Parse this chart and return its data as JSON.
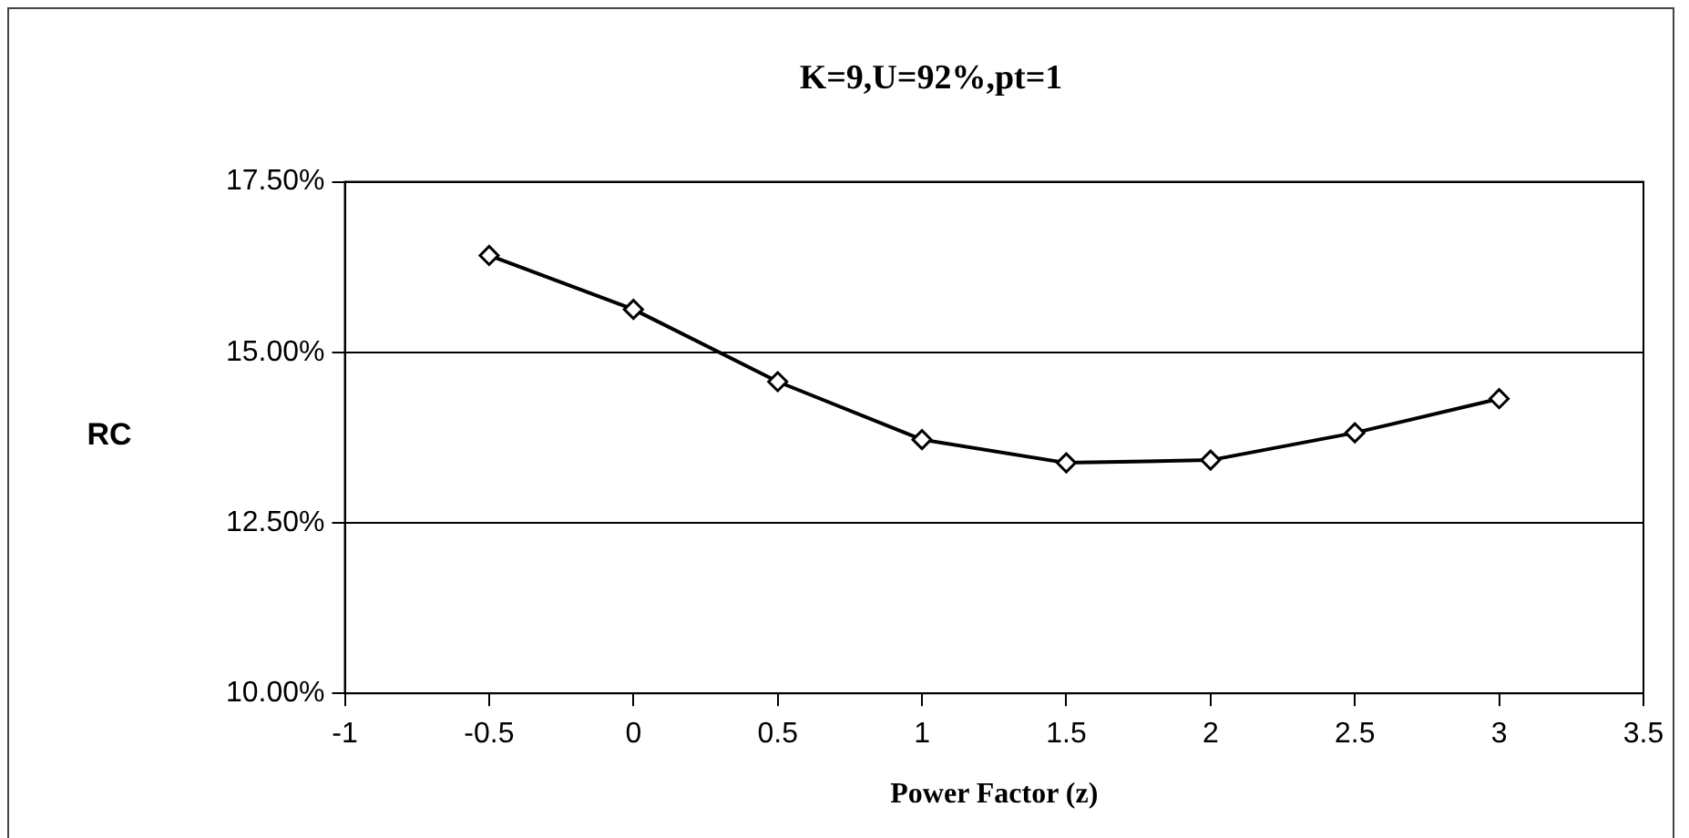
{
  "chart_data": {
    "type": "line",
    "title": "K=9,U=92%,pt=1",
    "xlabel": "Power Factor (z)",
    "ylabel": "RC",
    "x": [
      -0.5,
      0,
      0.5,
      1,
      1.5,
      2,
      2.5,
      3
    ],
    "series": [
      {
        "color": "#000000",
        "values": [
          16.42,
          15.63,
          14.57,
          13.72,
          13.38,
          13.42,
          13.82,
          14.32
        ]
      }
    ],
    "xlim": [
      -1,
      3.5
    ],
    "xticks": [
      -1,
      -0.5,
      0,
      0.5,
      1,
      1.5,
      2,
      2.5,
      3,
      3.5
    ],
    "ylim": [
      10,
      17.5
    ],
    "yticks": [
      {
        "value": 10,
        "label": "10.00%"
      },
      {
        "value": 12.5,
        "label": "12.50%"
      },
      {
        "value": 15,
        "label": "15.00%"
      },
      {
        "value": 17.5,
        "label": "17.50%"
      }
    ],
    "grid": "y",
    "legend": false,
    "marker": "diamond",
    "line_style": "solid"
  }
}
